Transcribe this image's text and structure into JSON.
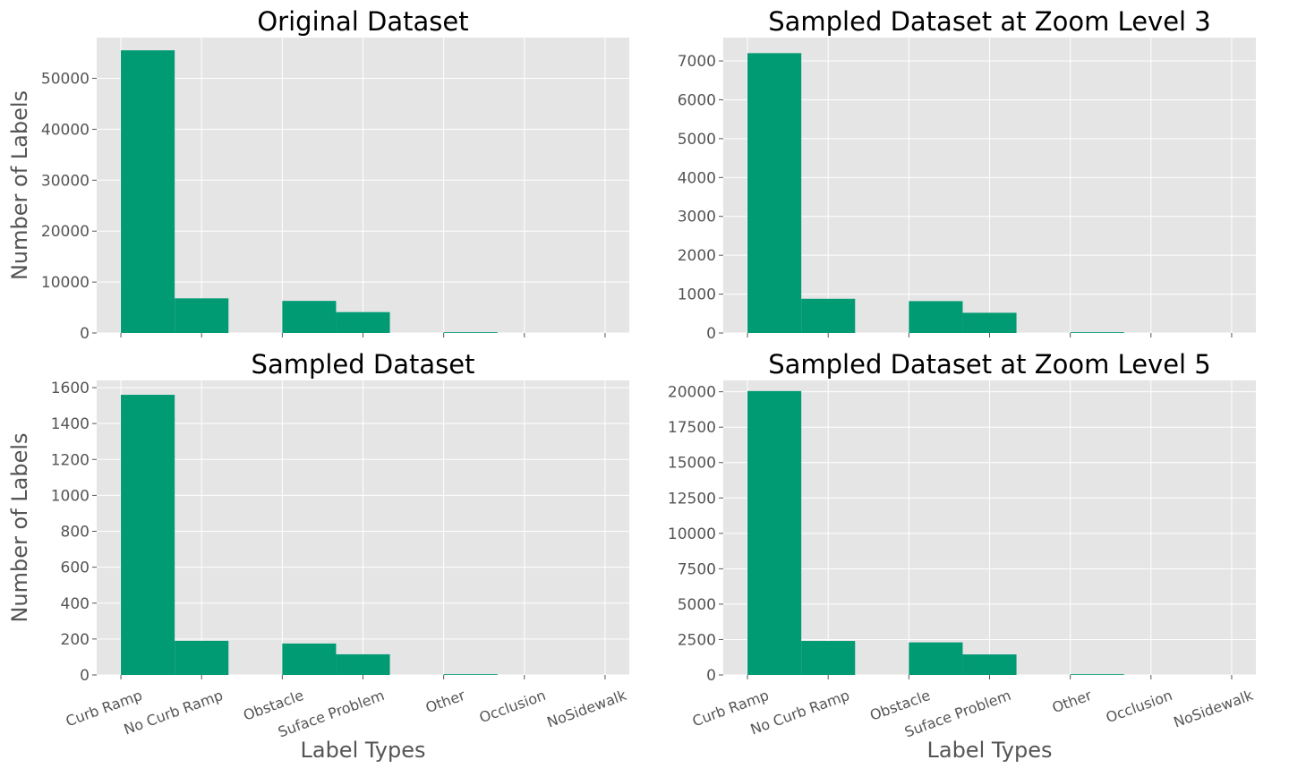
{
  "colors": {
    "bar": "#009a73",
    "panel_bg": "#e5e5e5",
    "grid": "#ffffff",
    "text": "#555555",
    "title": "#000000"
  },
  "chart_data": [
    {
      "type": "bar",
      "title": "Original Dataset",
      "categories": [
        "Curb Ramp",
        "No Curb Ramp",
        "Obstacle",
        "Suface Problem",
        "Other",
        "Occlusion",
        "NoSidewalk"
      ],
      "ylabel": "Number of Labels",
      "xlabel": "",
      "ylim": [
        0,
        58000
      ],
      "yticks": [
        0,
        10000,
        20000,
        30000,
        40000,
        50000
      ],
      "bars": [
        {
          "bin": 0,
          "value": 55500
        },
        {
          "bin": 1,
          "value": 6800
        },
        {
          "bin": 3,
          "value": 6300
        },
        {
          "bin": 4,
          "value": 4100
        },
        {
          "bin": 6,
          "value": 150
        }
      ],
      "show_xtick_labels": false
    },
    {
      "type": "bar",
      "title": "Sampled Dataset at Zoom Level 3",
      "categories": [
        "Curb Ramp",
        "No Curb Ramp",
        "Obstacle",
        "Suface Problem",
        "Other",
        "Occlusion",
        "NoSidewalk"
      ],
      "ylabel": "",
      "xlabel": "",
      "ylim": [
        0,
        7600
      ],
      "yticks": [
        0,
        1000,
        2000,
        3000,
        4000,
        5000,
        6000,
        7000
      ],
      "bars": [
        {
          "bin": 0,
          "value": 7200
        },
        {
          "bin": 1,
          "value": 880
        },
        {
          "bin": 3,
          "value": 820
        },
        {
          "bin": 4,
          "value": 520
        },
        {
          "bin": 6,
          "value": 20
        }
      ],
      "show_xtick_labels": false
    },
    {
      "type": "bar",
      "title": "Sampled Dataset",
      "categories": [
        "Curb Ramp",
        "No Curb Ramp",
        "Obstacle",
        "Suface Problem",
        "Other",
        "Occlusion",
        "NoSidewalk"
      ],
      "ylabel": "Number of Labels",
      "xlabel": "Label Types",
      "ylim": [
        0,
        1640
      ],
      "yticks": [
        0,
        200,
        400,
        600,
        800,
        1000,
        1200,
        1400,
        1600
      ],
      "bars": [
        {
          "bin": 0,
          "value": 1560
        },
        {
          "bin": 1,
          "value": 190
        },
        {
          "bin": 3,
          "value": 175
        },
        {
          "bin": 4,
          "value": 115
        },
        {
          "bin": 6,
          "value": 4
        }
      ],
      "show_xtick_labels": true
    },
    {
      "type": "bar",
      "title": "Sampled Dataset at Zoom Level 5",
      "categories": [
        "Curb Ramp",
        "No Curb Ramp",
        "Obstacle",
        "Suface Problem",
        "Other",
        "Occlusion",
        "NoSidewalk"
      ],
      "ylabel": "",
      "xlabel": "Label Types",
      "ylim": [
        0,
        20800
      ],
      "yticks": [
        0,
        2500,
        5000,
        7500,
        10000,
        12500,
        15000,
        17500,
        20000
      ],
      "bars": [
        {
          "bin": 0,
          "value": 20050
        },
        {
          "bin": 1,
          "value": 2400
        },
        {
          "bin": 3,
          "value": 2300
        },
        {
          "bin": 4,
          "value": 1450
        },
        {
          "bin": 6,
          "value": 50
        }
      ],
      "show_xtick_labels": true
    }
  ]
}
